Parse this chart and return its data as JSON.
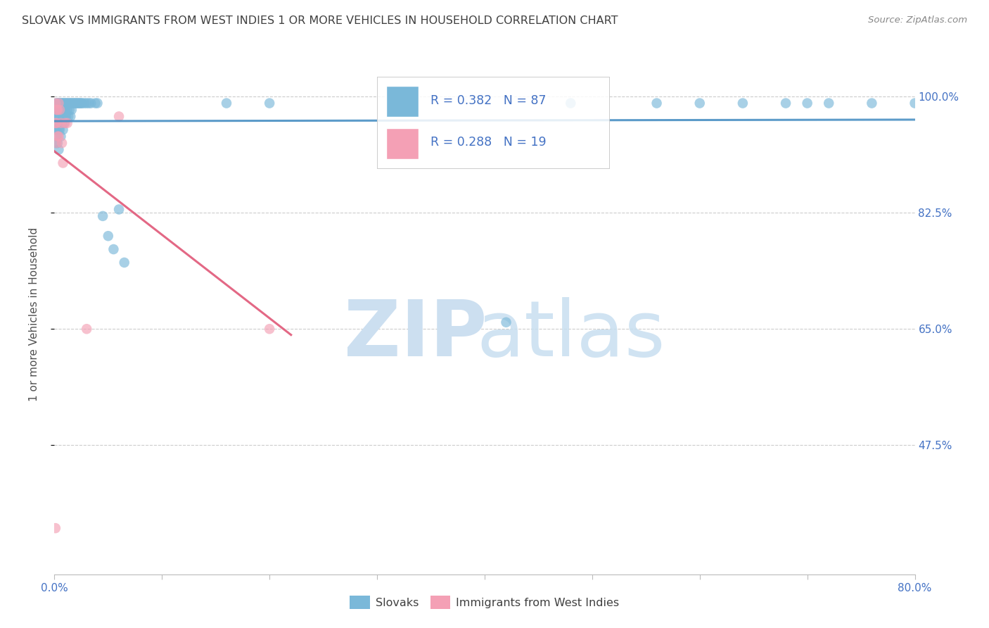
{
  "title": "SLOVAK VS IMMIGRANTS FROM WEST INDIES 1 OR MORE VEHICLES IN HOUSEHOLD CORRELATION CHART",
  "source": "Source: ZipAtlas.com",
  "ylabel": "1 or more Vehicles in Household",
  "legend_slovak": "Slovaks",
  "legend_west_indies": "Immigrants from West Indies",
  "R_slovak": 0.382,
  "N_slovak": 87,
  "R_west_indies": 0.288,
  "N_west_indies": 19,
  "color_slovak": "#7ab8d9",
  "color_west_indies": "#f4a0b5",
  "color_trend_slovak": "#4a90c4",
  "color_trend_west_indies": "#e05878",
  "color_axis_labels": "#4472c4",
  "color_title": "#404040",
  "color_source": "#888888",
  "color_grid": "#cccccc",
  "xmin": 0.0,
  "xmax": 0.8,
  "ymin": 0.28,
  "ymax": 1.065,
  "ytick_values": [
    1.0,
    0.825,
    0.65,
    0.475
  ],
  "ytick_labels": [
    "100.0%",
    "82.5%",
    "65.0%",
    "47.5%"
  ],
  "slovak_x": [
    0.001,
    0.001,
    0.001,
    0.001,
    0.002,
    0.002,
    0.002,
    0.002,
    0.002,
    0.002,
    0.003,
    0.003,
    0.003,
    0.003,
    0.003,
    0.004,
    0.004,
    0.004,
    0.004,
    0.004,
    0.005,
    0.005,
    0.005,
    0.005,
    0.006,
    0.006,
    0.006,
    0.006,
    0.006,
    0.007,
    0.007,
    0.007,
    0.008,
    0.008,
    0.008,
    0.008,
    0.009,
    0.009,
    0.009,
    0.01,
    0.01,
    0.01,
    0.011,
    0.011,
    0.012,
    0.012,
    0.013,
    0.013,
    0.014,
    0.014,
    0.015,
    0.015,
    0.016,
    0.016,
    0.017,
    0.018,
    0.019,
    0.02,
    0.021,
    0.022,
    0.023,
    0.024,
    0.025,
    0.026,
    0.028,
    0.03,
    0.032,
    0.034,
    0.038,
    0.04,
    0.045,
    0.05,
    0.055,
    0.06,
    0.065,
    0.16,
    0.2,
    0.42,
    0.48,
    0.56,
    0.6,
    0.64,
    0.68,
    0.7,
    0.72,
    0.76,
    0.8
  ],
  "slovak_y": [
    0.97,
    0.96,
    0.95,
    0.93,
    0.99,
    0.98,
    0.97,
    0.96,
    0.95,
    0.94,
    0.99,
    0.98,
    0.97,
    0.96,
    0.93,
    0.99,
    0.98,
    0.97,
    0.95,
    0.92,
    0.99,
    0.98,
    0.97,
    0.95,
    0.99,
    0.98,
    0.97,
    0.96,
    0.94,
    0.99,
    0.98,
    0.96,
    0.99,
    0.98,
    0.97,
    0.95,
    0.99,
    0.98,
    0.96,
    0.99,
    0.98,
    0.97,
    0.99,
    0.97,
    0.99,
    0.98,
    0.99,
    0.97,
    0.99,
    0.98,
    0.99,
    0.97,
    0.99,
    0.98,
    0.99,
    0.99,
    0.99,
    0.99,
    0.99,
    0.99,
    0.99,
    0.99,
    0.99,
    0.99,
    0.99,
    0.99,
    0.99,
    0.99,
    0.99,
    0.99,
    0.82,
    0.79,
    0.77,
    0.83,
    0.75,
    0.99,
    0.99,
    0.66,
    0.99,
    0.99,
    0.99,
    0.99,
    0.99,
    0.99,
    0.99,
    0.99,
    0.99
  ],
  "west_indies_x": [
    0.001,
    0.001,
    0.001,
    0.002,
    0.002,
    0.002,
    0.003,
    0.003,
    0.004,
    0.004,
    0.005,
    0.006,
    0.007,
    0.008,
    0.01,
    0.012,
    0.03,
    0.06,
    0.2
  ],
  "west_indies_y": [
    0.99,
    0.96,
    0.35,
    0.98,
    0.96,
    0.93,
    0.98,
    0.94,
    0.99,
    0.94,
    0.98,
    0.96,
    0.93,
    0.9,
    0.96,
    0.96,
    0.65,
    0.97,
    0.65
  ],
  "trend_slovak_x0": 0.0,
  "trend_slovak_x1": 0.8,
  "trend_west_indies_x0": 0.0,
  "trend_west_indies_x1": 0.22
}
